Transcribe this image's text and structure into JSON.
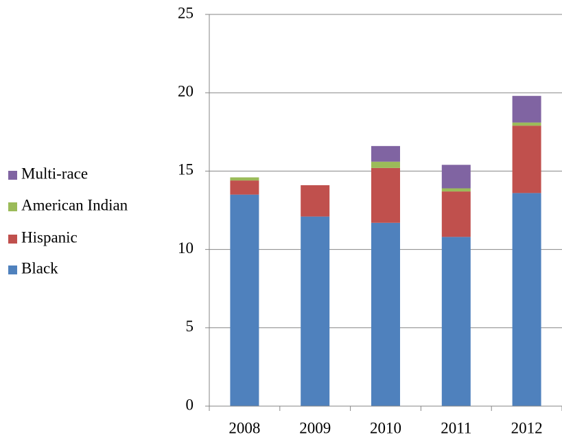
{
  "chart_data": {
    "type": "bar",
    "stacked": true,
    "categories": [
      "2008",
      "2009",
      "2010",
      "2011",
      "2012"
    ],
    "series": [
      {
        "name": "Black",
        "color": "#4f81bd",
        "values": [
          13.5,
          12.1,
          11.7,
          10.8,
          13.6
        ]
      },
      {
        "name": "Hispanic",
        "color": "#c0504d",
        "values": [
          0.9,
          2.0,
          3.5,
          2.9,
          4.3
        ]
      },
      {
        "name": "American Indian",
        "color": "#9bbb59",
        "values": [
          0.2,
          0,
          0.4,
          0.2,
          0.2
        ]
      },
      {
        "name": "Multi-race",
        "color": "#8064a2",
        "values": [
          0,
          0,
          1.0,
          1.5,
          1.7
        ]
      }
    ],
    "ylim": [
      0,
      25
    ],
    "yticks": [
      0,
      5,
      10,
      15,
      20,
      25
    ],
    "grid": true,
    "legend": "left"
  }
}
